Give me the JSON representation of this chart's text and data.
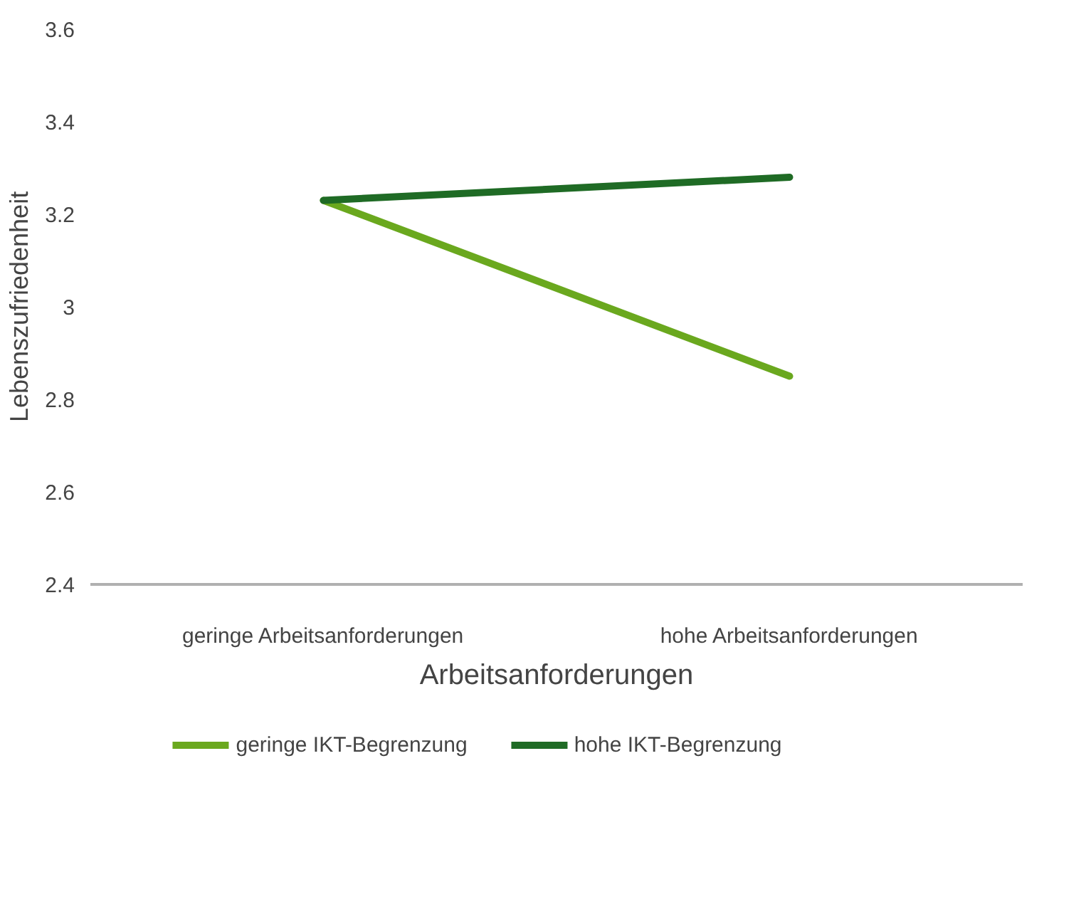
{
  "chart_data": {
    "type": "line",
    "xlabel": "Arbeitsanforderungen",
    "ylabel": "Lebenszufriedenheit",
    "categories": [
      "geringe Arbeitsanforderungen",
      "hohe Arbeitsanforderungen"
    ],
    "series": [
      {
        "name": "geringe IKT-Begrenzung",
        "color": "#6aa81e",
        "values": [
          3.23,
          2.85
        ]
      },
      {
        "name": "hohe IKT-Begrenzung",
        "color": "#1f6b25",
        "values": [
          3.23,
          3.28
        ]
      }
    ],
    "ylim": [
      2.4,
      3.6
    ],
    "yticks": [
      2.4,
      2.6,
      2.8,
      3,
      3.2,
      3.4,
      3.6
    ],
    "grid": false,
    "legend": "bottom",
    "marker": "none",
    "line_style": "solid"
  }
}
